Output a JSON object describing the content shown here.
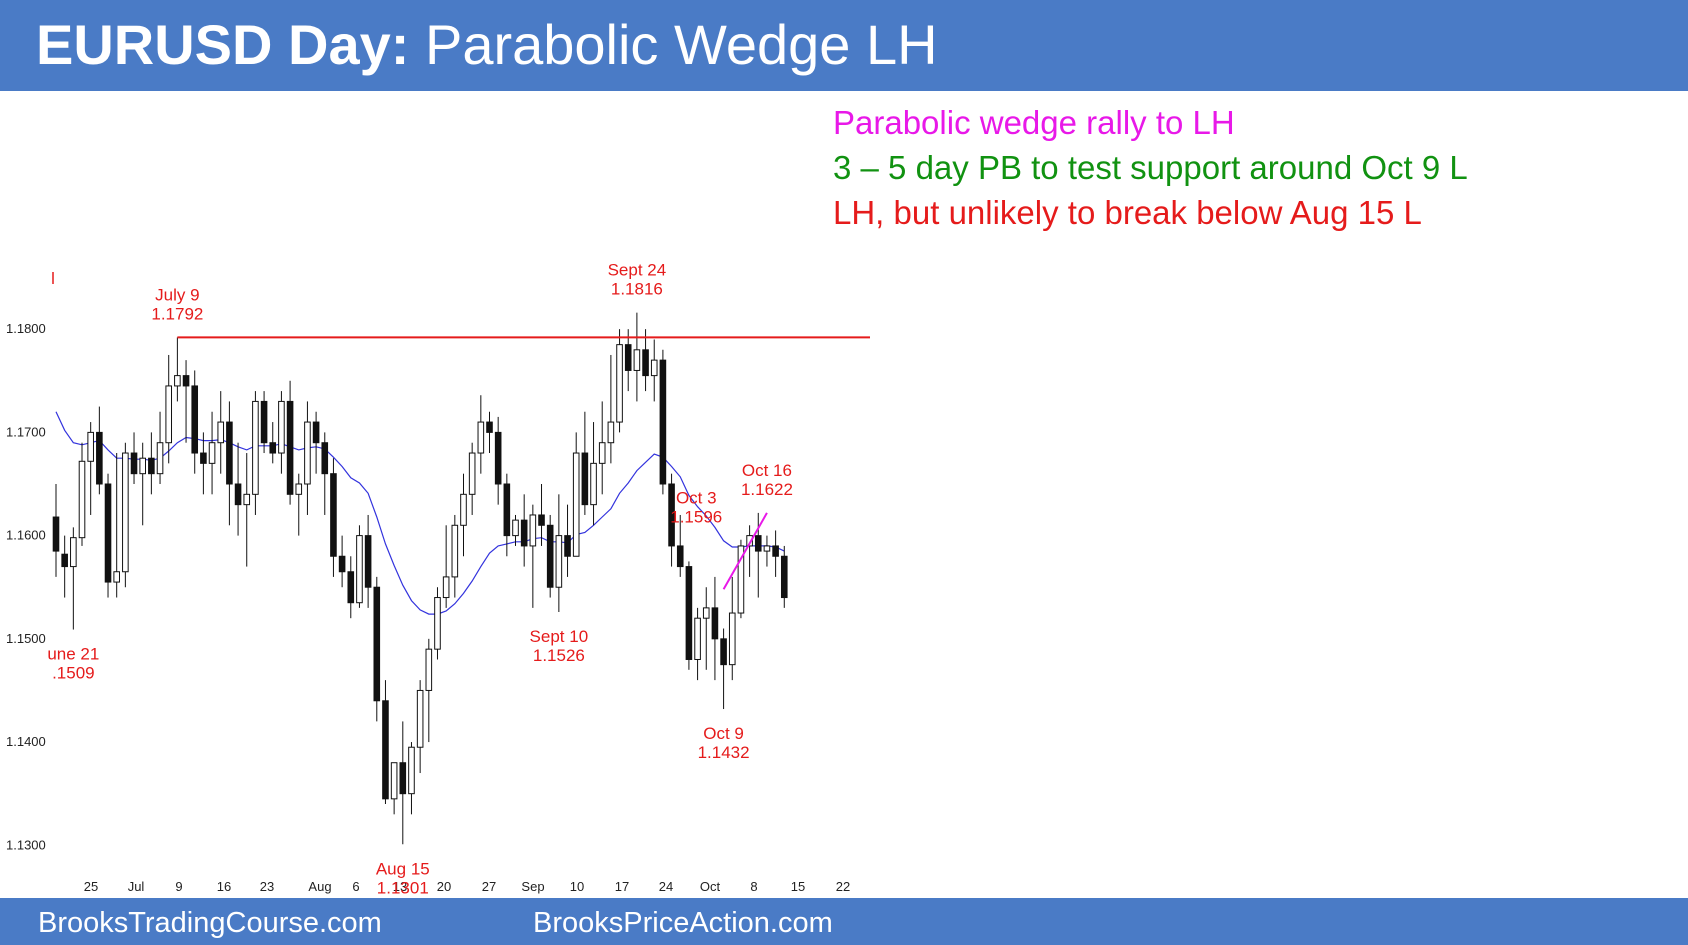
{
  "header": {
    "title_bold": "EURUSD Day:",
    "title_rest": " Parabolic Wedge LH"
  },
  "annotations": [
    {
      "text": "Parabolic wedge rally to LH",
      "color": "#e818e8"
    },
    {
      "text": "3 – 5 day PB to test support around Oct 9 L",
      "color": "#119211"
    },
    {
      "text": "LH, but unlikely to break below Aug 15 L",
      "color": "#e51b1b"
    }
  ],
  "footer": {
    "left": "BrooksTradingCourse.com",
    "right": "BrooksPriceAction.com"
  },
  "colors": {
    "banner": "#4a7bc6",
    "resistance_line": "#e51b1b",
    "wedge_line": "#e818e8",
    "ema": "#3333dd",
    "callout": "#e51b1b"
  },
  "chart_data": {
    "type": "candlestick",
    "title": "EURUSD Day",
    "ylim": [
      1.1247,
      1.1867
    ],
    "yticks": [
      "1.1300",
      "1.1400",
      "1.1500",
      "1.1600",
      "1.1700",
      "1.1800"
    ],
    "xticks": [
      "25",
      "Jul",
      "9",
      "16",
      "23",
      "Aug",
      "6",
      "13",
      "20",
      "27",
      "Sep",
      "10",
      "17",
      "24",
      "Oct",
      "8",
      "15",
      "22"
    ],
    "grid": false,
    "candles": [
      [
        1.1618,
        1.165,
        1.156,
        1.1585
      ],
      [
        1.1582,
        1.16,
        1.154,
        1.157
      ],
      [
        1.157,
        1.1608,
        1.1509,
        1.1598
      ],
      [
        1.1598,
        1.169,
        1.159,
        1.1672
      ],
      [
        1.1672,
        1.171,
        1.162,
        1.17
      ],
      [
        1.17,
        1.1725,
        1.164,
        1.165
      ],
      [
        1.165,
        1.166,
        1.154,
        1.1555
      ],
      [
        1.1555,
        1.168,
        1.154,
        1.1565
      ],
      [
        1.1565,
        1.169,
        1.155,
        1.168
      ],
      [
        1.168,
        1.17,
        1.165,
        1.166
      ],
      [
        1.166,
        1.169,
        1.161,
        1.1675
      ],
      [
        1.1675,
        1.17,
        1.164,
        1.166
      ],
      [
        1.166,
        1.172,
        1.165,
        1.169
      ],
      [
        1.169,
        1.1775,
        1.167,
        1.1745
      ],
      [
        1.1745,
        1.1792,
        1.173,
        1.1755
      ],
      [
        1.1755,
        1.177,
        1.169,
        1.1745
      ],
      [
        1.1745,
        1.176,
        1.166,
        1.168
      ],
      [
        1.168,
        1.17,
        1.164,
        1.167
      ],
      [
        1.167,
        1.172,
        1.164,
        1.169
      ],
      [
        1.169,
        1.174,
        1.166,
        1.171
      ],
      [
        1.171,
        1.173,
        1.161,
        1.165
      ],
      [
        1.165,
        1.169,
        1.16,
        1.163
      ],
      [
        1.163,
        1.168,
        1.157,
        1.164
      ],
      [
        1.164,
        1.174,
        1.162,
        1.173
      ],
      [
        1.173,
        1.174,
        1.168,
        1.169
      ],
      [
        1.169,
        1.171,
        1.167,
        1.168
      ],
      [
        1.168,
        1.174,
        1.166,
        1.173
      ],
      [
        1.173,
        1.175,
        1.163,
        1.164
      ],
      [
        1.164,
        1.166,
        1.16,
        1.165
      ],
      [
        1.165,
        1.173,
        1.162,
        1.171
      ],
      [
        1.171,
        1.172,
        1.166,
        1.169
      ],
      [
        1.169,
        1.17,
        1.162,
        1.166
      ],
      [
        1.166,
        1.1675,
        1.156,
        1.158
      ],
      [
        1.158,
        1.16,
        1.155,
        1.1565
      ],
      [
        1.1565,
        1.158,
        1.152,
        1.1535
      ],
      [
        1.1535,
        1.161,
        1.153,
        1.16
      ],
      [
        1.16,
        1.162,
        1.153,
        1.155
      ],
      [
        1.155,
        1.156,
        1.142,
        1.144
      ],
      [
        1.144,
        1.146,
        1.134,
        1.1345
      ],
      [
        1.1345,
        1.138,
        1.133,
        1.138
      ],
      [
        1.138,
        1.142,
        1.1301,
        1.135
      ],
      [
        1.135,
        1.14,
        1.133,
        1.1395
      ],
      [
        1.1395,
        1.146,
        1.137,
        1.145
      ],
      [
        1.145,
        1.15,
        1.14,
        1.149
      ],
      [
        1.149,
        1.155,
        1.148,
        1.154
      ],
      [
        1.154,
        1.161,
        1.153,
        1.156
      ],
      [
        1.156,
        1.162,
        1.154,
        1.161
      ],
      [
        1.161,
        1.166,
        1.158,
        1.164
      ],
      [
        1.164,
        1.169,
        1.162,
        1.168
      ],
      [
        1.168,
        1.1736,
        1.166,
        1.171
      ],
      [
        1.171,
        1.172,
        1.168,
        1.17
      ],
      [
        1.17,
        1.1715,
        1.163,
        1.165
      ],
      [
        1.165,
        1.166,
        1.158,
        1.16
      ],
      [
        1.16,
        1.162,
        1.159,
        1.1615
      ],
      [
        1.1615,
        1.164,
        1.157,
        1.159
      ],
      [
        1.159,
        1.163,
        1.153,
        1.162
      ],
      [
        1.162,
        1.165,
        1.159,
        1.161
      ],
      [
        1.161,
        1.162,
        1.154,
        1.155
      ],
      [
        1.155,
        1.164,
        1.1526,
        1.16
      ],
      [
        1.16,
        1.163,
        1.156,
        1.158
      ],
      [
        1.158,
        1.17,
        1.158,
        1.168
      ],
      [
        1.168,
        1.172,
        1.162,
        1.163
      ],
      [
        1.163,
        1.171,
        1.161,
        1.167
      ],
      [
        1.167,
        1.173,
        1.164,
        1.169
      ],
      [
        1.169,
        1.1775,
        1.167,
        1.171
      ],
      [
        1.171,
        1.18,
        1.17,
        1.1785
      ],
      [
        1.1785,
        1.18,
        1.174,
        1.176
      ],
      [
        1.176,
        1.1816,
        1.173,
        1.178
      ],
      [
        1.178,
        1.18,
        1.174,
        1.1755
      ],
      [
        1.1755,
        1.179,
        1.173,
        1.177
      ],
      [
        1.177,
        1.178,
        1.164,
        1.165
      ],
      [
        1.165,
        1.166,
        1.157,
        1.159
      ],
      [
        1.159,
        1.162,
        1.156,
        1.157
      ],
      [
        1.157,
        1.1575,
        1.147,
        1.148
      ],
      [
        1.148,
        1.153,
        1.146,
        1.152
      ],
      [
        1.152,
        1.155,
        1.147,
        1.153
      ],
      [
        1.153,
        1.156,
        1.146,
        1.15
      ],
      [
        1.15,
        1.151,
        1.1432,
        1.1475
      ],
      [
        1.1475,
        1.156,
        1.146,
        1.1525
      ],
      [
        1.1525,
        1.1596,
        1.152,
        1.159
      ],
      [
        1.159,
        1.161,
        1.156,
        1.16
      ],
      [
        1.16,
        1.1622,
        1.154,
        1.1585
      ],
      [
        1.1585,
        1.16,
        1.157,
        1.159
      ],
      [
        1.159,
        1.1605,
        1.156,
        1.158
      ],
      [
        1.158,
        1.159,
        1.153,
        1.154
      ]
    ],
    "ema": [
      1.172,
      1.1702,
      1.169,
      1.1688,
      1.169,
      1.1692,
      1.1683,
      1.1675,
      1.1675,
      1.1674,
      1.1674,
      1.1673,
      1.1675,
      1.1682,
      1.169,
      1.1695,
      1.1694,
      1.1692,
      1.1692,
      1.1693,
      1.169,
      1.1686,
      1.1683,
      1.1687,
      1.1687,
      1.1687,
      1.1689,
      1.1686,
      1.1683,
      1.1685,
      1.1686,
      1.1684,
      1.1676,
      1.1667,
      1.1656,
      1.1651,
      1.1641,
      1.1618,
      1.1592,
      1.1571,
      1.1552,
      1.1537,
      1.1528,
      1.1524,
      1.1524,
      1.1527,
      1.1534,
      1.1544,
      1.1556,
      1.157,
      1.1583,
      1.159,
      1.1592,
      1.1594,
      1.1594,
      1.1597,
      1.1598,
      1.1594,
      1.1594,
      1.1593,
      1.1601,
      1.1603,
      1.161,
      1.1618,
      1.1626,
      1.1641,
      1.1651,
      1.1663,
      1.1671,
      1.1679,
      1.1676,
      1.1667,
      1.1657,
      1.1639,
      1.1628,
      1.1619,
      1.1608,
      1.1595,
      1.1589,
      1.1589,
      1.159,
      1.159,
      1.159,
      1.1589,
      1.1585
    ],
    "resistance_line": {
      "price": 1.1792,
      "from_candle": 14,
      "to_candle": 96
    },
    "wedge_line": {
      "from": [
        77,
        1.1548
      ],
      "to": [
        82,
        1.1622
      ]
    },
    "callouts": [
      {
        "lines": [
          "July 9",
          "1.1792"
        ],
        "candle": 14,
        "price": 1.1792,
        "position": "above"
      },
      {
        "lines": [
          "Sept 24",
          "1.1816"
        ],
        "candle": 67,
        "price": 1.1816,
        "position": "above"
      },
      {
        "lines": [
          "Oct 16",
          "1.1622"
        ],
        "candle": 82,
        "price": 1.1622,
        "position": "above"
      },
      {
        "lines": [
          "Oct 3",
          "1.1596"
        ],
        "candle": 75,
        "price": 1.1596,
        "position": "above-left"
      },
      {
        "lines": [
          "Aug 15",
          "1.1301"
        ],
        "candle": 40,
        "price": 1.1301,
        "position": "below"
      },
      {
        "lines": [
          "Sept 10",
          "1.1526"
        ],
        "candle": 58,
        "price": 1.1526,
        "position": "below"
      },
      {
        "lines": [
          "Oct 9",
          "1.1432"
        ],
        "candle": 77,
        "price": 1.1432,
        "position": "below"
      },
      {
        "lines": [
          "une 21",
          ".1509"
        ],
        "candle": 2,
        "price": 1.1509,
        "position": "below"
      }
    ]
  }
}
